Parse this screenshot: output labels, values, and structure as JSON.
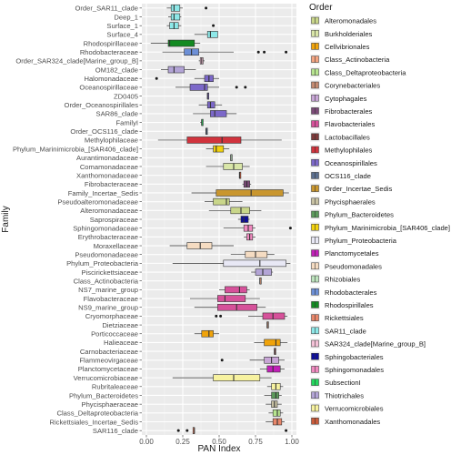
{
  "chart_data": {
    "type": "boxplot",
    "orientation": "horizontal",
    "xlabel": "PAN Index",
    "ylabel": "Family",
    "xlim": [
      0,
      1
    ],
    "xticks": [
      "0.00",
      "0.25",
      "0.50",
      "0.75",
      "1.00"
    ],
    "xtick_values": [
      0,
      0.25,
      0.5,
      0.75,
      1
    ],
    "grid": true,
    "legend_title": "Order",
    "legend_position": "right",
    "orders": [
      {
        "name": "Alteromonadales",
        "color": "#c9d68a"
      },
      {
        "name": "Burkholderiales",
        "color": "#d9e6a8"
      },
      {
        "name": "Cellvibrionales",
        "color": "#f0a30a"
      },
      {
        "name": "Class_Actinobacteria",
        "color": "#f4a582"
      },
      {
        "name": "Class_Deltaproteobacteria",
        "color": "#b7e58f"
      },
      {
        "name": "Corynebacteriales",
        "color": "#c48a70"
      },
      {
        "name": "Cytophagales",
        "color": "#c8a6d6"
      },
      {
        "name": "Fibrobacterales",
        "color": "#7b4a77"
      },
      {
        "name": "Flavobacteriales",
        "color": "#d6519a"
      },
      {
        "name": "Lactobacillales",
        "color": "#7d3a3a"
      },
      {
        "name": "Methylophilales",
        "color": "#d1333d"
      },
      {
        "name": "Oceanospirillales",
        "color": "#7c68c9"
      },
      {
        "name": "OCS116_clade",
        "color": "#5b6f8f"
      },
      {
        "name": "Order_Incertae_Sedis",
        "color": "#c9962e"
      },
      {
        "name": "Phycisphaerales",
        "color": "#c8c2a3"
      },
      {
        "name": "Phylum_Bacteroidetes",
        "color": "#5b9a5b"
      },
      {
        "name": "Phylum_Marinimicrobia_[SAR406_clade]",
        "color": "#f2d20e"
      },
      {
        "name": "Phylum_Proteobacteria",
        "color": "#e8e8f5"
      },
      {
        "name": "Planctomycetales",
        "color": "#c21fb8"
      },
      {
        "name": "Pseudomonadales",
        "color": "#f5dcc2"
      },
      {
        "name": "Rhizobiales",
        "color": "#bde3bd"
      },
      {
        "name": "Rhodobacterales",
        "color": "#6c8fd6"
      },
      {
        "name": "Rhodospirillales",
        "color": "#128a21"
      },
      {
        "name": "Rickettsiales",
        "color": "#e8866a"
      },
      {
        "name": "SAR11_clade",
        "color": "#8ee8e8"
      },
      {
        "name": "SAR324_clade[Marine_group_B]",
        "color": "#f5c2d8"
      },
      {
        "name": "Sphingobacteriales",
        "color": "#0d0d9a"
      },
      {
        "name": "Sphingomonadales",
        "color": "#f08ac0"
      },
      {
        "name": "SubsectionI",
        "color": "#22d65c"
      },
      {
        "name": "Thiotrichales",
        "color": "#b3a4d6"
      },
      {
        "name": "Verrucomicrobiales",
        "color": "#f7f2a0"
      },
      {
        "name": "Xanthomonadales",
        "color": "#c95b3a"
      }
    ],
    "families": [
      {
        "name": "Order_SAR11_clade",
        "order": "SAR11_clade",
        "wmin": 0.14,
        "q1": 0.17,
        "med": 0.19,
        "q3": 0.23,
        "wmax": 0.25,
        "outliers": [
          0.41
        ]
      },
      {
        "name": "Deep_1",
        "order": "SAR11_clade",
        "wmin": 0.15,
        "q1": 0.17,
        "med": 0.19,
        "q3": 0.23,
        "wmax": 0.24,
        "outliers": []
      },
      {
        "name": "Surface_1",
        "order": "SAR11_clade",
        "wmin": 0.14,
        "q1": 0.16,
        "med": 0.19,
        "q3": 0.22,
        "wmax": 0.24,
        "outliers": [
          0.46
        ]
      },
      {
        "name": "Surface_4",
        "order": "SAR11_clade",
        "wmin": 0.33,
        "q1": 0.42,
        "med": 0.44,
        "q3": 0.49,
        "wmax": 0.49,
        "outliers": []
      },
      {
        "name": "Rhodospirillaceae",
        "order": "Rhodospirillales",
        "wmin": 0.03,
        "q1": 0.15,
        "med": 0.16,
        "q3": 0.33,
        "wmax": 0.37,
        "outliers": []
      },
      {
        "name": "Rhodobacteraceae",
        "order": "Rhodobacterales",
        "wmin": 0.11,
        "q1": 0.26,
        "med": 0.31,
        "q3": 0.36,
        "wmax": 0.6,
        "outliers": [
          0.77,
          0.81,
          0.96
        ]
      },
      {
        "name": "Order_SAR324_clade[Marine_group_B]",
        "order": "SAR324_clade[Marine_group_B]",
        "wmin": 0.36,
        "q1": 0.37,
        "med": 0.38,
        "q3": 0.39,
        "wmax": 0.4,
        "outliers": []
      },
      {
        "name": "OM182_clade",
        "order": "Thiotrichales",
        "wmin": 0.1,
        "q1": 0.15,
        "med": 0.19,
        "q3": 0.26,
        "wmax": 0.34,
        "outliers": []
      },
      {
        "name": "Halomonadaceae",
        "order": "Oceanospirillales",
        "wmin": 0.33,
        "q1": 0.4,
        "med": 0.43,
        "q3": 0.46,
        "wmax": 0.5,
        "outliers": [
          0.07
        ]
      },
      {
        "name": "Oceanospirillaceae",
        "order": "Oceanospirillales",
        "wmin": 0.2,
        "q1": 0.3,
        "med": 0.4,
        "q3": 0.42,
        "wmax": 0.5,
        "outliers": [
          0.62,
          0.68
        ]
      },
      {
        "name": "ZD0405",
        "order": "Oceanospirillales",
        "wmin": 0.42,
        "q1": 0.42,
        "med": 0.42,
        "q3": 0.42,
        "wmax": 0.42,
        "outliers": []
      },
      {
        "name": "Order_Oceanospirillales",
        "order": "Oceanospirillales",
        "wmin": 0.36,
        "q1": 0.42,
        "med": 0.44,
        "q3": 0.47,
        "wmax": 0.52,
        "outliers": []
      },
      {
        "name": "SAR86_clade",
        "order": "Oceanospirillales",
        "wmin": 0.32,
        "q1": 0.44,
        "med": 0.47,
        "q3": 0.55,
        "wmax": 0.62,
        "outliers": []
      },
      {
        "name": "FamilyI",
        "order": "SubsectionI",
        "wmin": 0.37,
        "q1": 0.38,
        "med": 0.38,
        "q3": 0.39,
        "wmax": 0.39,
        "outliers": []
      },
      {
        "name": "Order_OCS116_clade",
        "order": "OCS116_clade",
        "wmin": 0.41,
        "q1": 0.41,
        "med": 0.41,
        "q3": 0.41,
        "wmax": 0.41,
        "outliers": []
      },
      {
        "name": "Methylophilaceae",
        "order": "Methylophilales",
        "wmin": 0.08,
        "q1": 0.28,
        "med": 0.52,
        "q3": 0.65,
        "wmax": 0.93,
        "outliers": []
      },
      {
        "name": "Phylum_Marinimicrobia_[SAR406_clade]",
        "order": "Phylum_Marinimicrobia_[SAR406_clade]",
        "wmin": 0.41,
        "q1": 0.46,
        "med": 0.48,
        "q3": 0.53,
        "wmax": 0.57,
        "outliers": []
      },
      {
        "name": "Aurantimonadaceae",
        "order": "Rhizobiales",
        "wmin": 0.58,
        "q1": 0.58,
        "med": 0.58,
        "q3": 0.58,
        "wmax": 0.58,
        "outliers": []
      },
      {
        "name": "Comamonadaceae",
        "order": "Burkholderiales",
        "wmin": 0.41,
        "q1": 0.53,
        "med": 0.6,
        "q3": 0.66,
        "wmax": 0.71,
        "outliers": []
      },
      {
        "name": "Xanthomonadaceae",
        "order": "Xanthomonadales",
        "wmin": 0.64,
        "q1": 0.64,
        "med": 0.64,
        "q3": 0.64,
        "wmax": 0.64,
        "outliers": []
      },
      {
        "name": "Fibrobacteraceae",
        "order": "Fibrobacterales",
        "wmin": 0.66,
        "q1": 0.67,
        "med": 0.69,
        "q3": 0.71,
        "wmax": 0.72,
        "outliers": []
      },
      {
        "name": "Family_Incertae_Sedis",
        "order": "Order_Incertae_Sedis",
        "wmin": 0.31,
        "q1": 0.48,
        "med": 0.72,
        "q3": 0.94,
        "wmax": 0.98,
        "outliers": []
      },
      {
        "name": "Pseudoalteromonadaceae",
        "order": "Alteromonadales",
        "wmin": 0.4,
        "q1": 0.46,
        "med": 0.55,
        "q3": 0.57,
        "wmax": 0.66,
        "outliers": []
      },
      {
        "name": "Alteromonadaceae",
        "order": "Alteromonadales",
        "wmin": 0.43,
        "q1": 0.58,
        "med": 0.65,
        "q3": 0.71,
        "wmax": 0.79,
        "outliers": []
      },
      {
        "name": "Saprospiraceae",
        "order": "Sphingobacteriales",
        "wmin": 0.63,
        "q1": 0.65,
        "med": 0.67,
        "q3": 0.7,
        "wmax": 0.71,
        "outliers": []
      },
      {
        "name": "Sphingomonadaceae",
        "order": "Sphingomonadales",
        "wmin": 0.53,
        "q1": 0.67,
        "med": 0.7,
        "q3": 0.73,
        "wmax": 0.75,
        "outliers": [
          0.99
        ]
      },
      {
        "name": "Erythrobacteraceae",
        "order": "Sphingomonadales",
        "wmin": 0.67,
        "q1": 0.69,
        "med": 0.71,
        "q3": 0.73,
        "wmax": 0.75,
        "outliers": []
      },
      {
        "name": "Moraxellaceae",
        "order": "Pseudomonadales",
        "wmin": 0.16,
        "q1": 0.28,
        "med": 0.37,
        "q3": 0.45,
        "wmax": 0.6,
        "outliers": []
      },
      {
        "name": "Pseudomonadaceae",
        "order": "Pseudomonadales",
        "wmin": 0.58,
        "q1": 0.68,
        "med": 0.75,
        "q3": 0.83,
        "wmax": 0.88,
        "outliers": []
      },
      {
        "name": "Phylum_Proteobacteria",
        "order": "Phylum_Proteobacteria",
        "wmin": 0.18,
        "q1": 0.53,
        "med": 0.78,
        "q3": 0.96,
        "wmax": 0.99,
        "outliers": []
      },
      {
        "name": "Piscirickettsiaceae",
        "order": "Thiotrichales",
        "wmin": 0.72,
        "q1": 0.75,
        "med": 0.8,
        "q3": 0.86,
        "wmax": 0.87,
        "outliers": []
      },
      {
        "name": "Class_Actinobacteria",
        "order": "Class_Actinobacteria",
        "wmin": 0.78,
        "q1": 0.78,
        "med": 0.78,
        "q3": 0.78,
        "wmax": 0.78,
        "outliers": []
      },
      {
        "name": "NS7_marine_group",
        "order": "Flavobacteriales",
        "wmin": 0.5,
        "q1": 0.54,
        "med": 0.64,
        "q3": 0.69,
        "wmax": 0.71,
        "outliers": []
      },
      {
        "name": "Flavobacteraceae",
        "order": "Flavobacteriales",
        "wmin": 0.3,
        "q1": 0.49,
        "med": 0.54,
        "q3": 0.68,
        "wmax": 0.78,
        "outliers": []
      },
      {
        "name": "NS9_marine_group",
        "order": "Flavobacteriales",
        "wmin": 0.33,
        "q1": 0.49,
        "med": 0.62,
        "q3": 0.76,
        "wmax": 0.82,
        "outliers": []
      },
      {
        "name": "Cryomorphaceae",
        "order": "Flavobacteriales",
        "wmin": 0.7,
        "q1": 0.8,
        "med": 0.87,
        "q3": 0.95,
        "wmax": 0.97,
        "outliers": [
          0.48,
          0.51
        ]
      },
      {
        "name": "Dietziaceae",
        "order": "Corynebacteriales",
        "wmin": 0.83,
        "q1": 0.83,
        "med": 0.83,
        "q3": 0.83,
        "wmax": 0.83,
        "outliers": []
      },
      {
        "name": "Porticoccaceae",
        "order": "Cellvibrionales",
        "wmin": 0.33,
        "q1": 0.38,
        "med": 0.43,
        "q3": 0.46,
        "wmax": 0.5,
        "outliers": []
      },
      {
        "name": "Halieaceae",
        "order": "Cellvibrionales",
        "wmin": 0.74,
        "q1": 0.81,
        "med": 0.89,
        "q3": 0.92,
        "wmax": 0.97,
        "outliers": []
      },
      {
        "name": "Carnobacteriaceae",
        "order": "Lactobacillales",
        "wmin": 0.88,
        "q1": 0.88,
        "med": 0.88,
        "q3": 0.88,
        "wmax": 0.88,
        "outliers": []
      },
      {
        "name": "Flammeovirgaceae",
        "order": "Cytophagales",
        "wmin": 0.71,
        "q1": 0.81,
        "med": 0.86,
        "q3": 0.91,
        "wmax": 0.95,
        "outliers": [
          0.52
        ]
      },
      {
        "name": "Planctomycetaceae",
        "order": "Planctomycetales",
        "wmin": 0.78,
        "q1": 0.83,
        "med": 0.87,
        "q3": 0.92,
        "wmax": 0.95,
        "outliers": []
      },
      {
        "name": "Verrucomicrobiaceae",
        "order": "Verrucomicrobiales",
        "wmin": 0.18,
        "q1": 0.46,
        "med": 0.6,
        "q3": 0.78,
        "wmax": 0.86,
        "outliers": []
      },
      {
        "name": "Rubritaleaceae",
        "order": "Verrucomicrobiales",
        "wmin": 0.83,
        "q1": 0.86,
        "med": 0.89,
        "q3": 0.92,
        "wmax": 0.94,
        "outliers": []
      },
      {
        "name": "Phylum_Bacteroidetes",
        "order": "Phylum_Bacteroidetes",
        "wmin": 0.81,
        "q1": 0.86,
        "med": 0.89,
        "q3": 0.91,
        "wmax": 0.93,
        "outliers": []
      },
      {
        "name": "Phycisphaeraceae",
        "order": "Phycisphaerales",
        "wmin": 0.82,
        "q1": 0.86,
        "med": 0.88,
        "q3": 0.9,
        "wmax": 0.93,
        "outliers": []
      },
      {
        "name": "Class_Deltaproteobacteria",
        "order": "Class_Deltaproteobacteria",
        "wmin": 0.84,
        "q1": 0.87,
        "med": 0.9,
        "q3": 0.92,
        "wmax": 0.94,
        "outliers": []
      },
      {
        "name": "Rickettsiales_Incertae_Sedis",
        "order": "Rickettsiales",
        "wmin": 0.82,
        "q1": 0.87,
        "med": 0.9,
        "q3": 0.93,
        "wmax": 0.95,
        "outliers": []
      },
      {
        "name": "SAR116_clade",
        "order": "Rickettsiales",
        "wmin": 0.32,
        "q1": 0.32,
        "med": 0.33,
        "q3": 0.33,
        "wmax": 0.33,
        "outliers": [
          0.22,
          0.28,
          0.96
        ]
      }
    ]
  }
}
